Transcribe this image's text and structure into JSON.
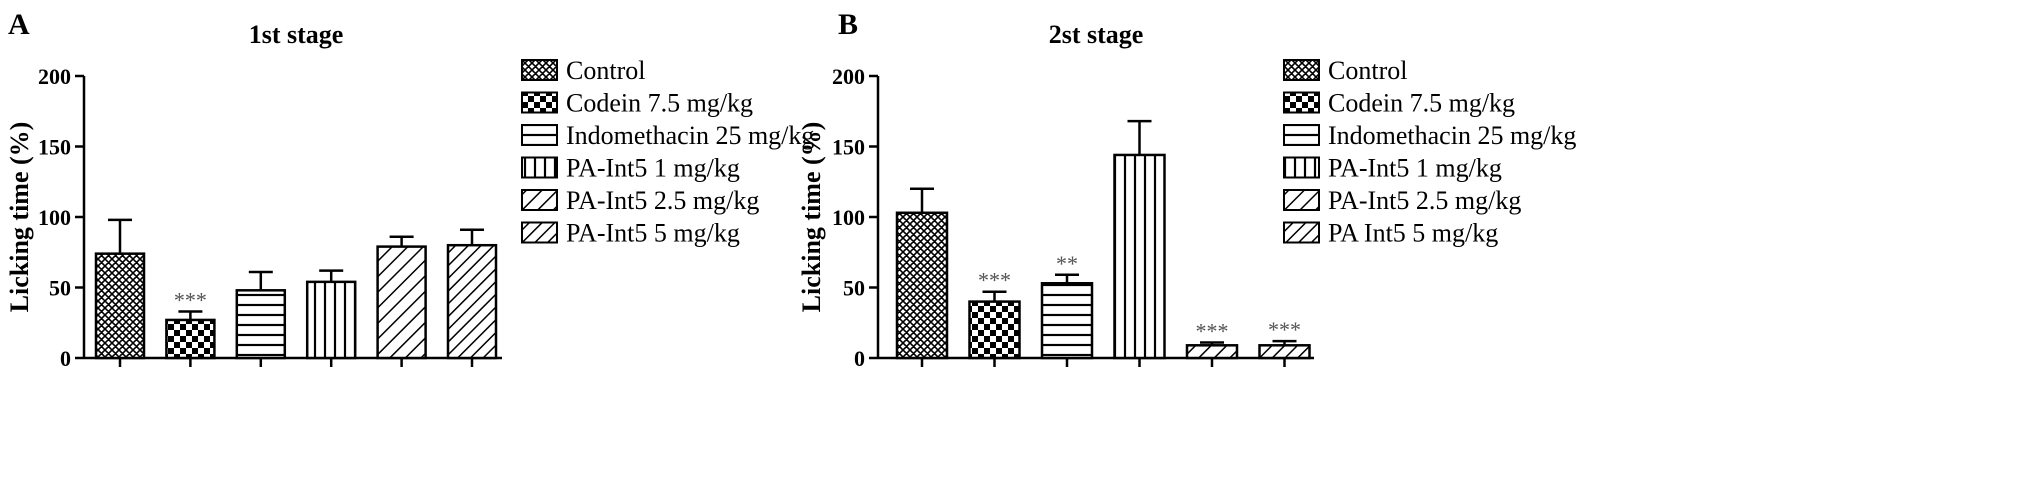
{
  "panels": [
    {
      "letter": "A",
      "chart_data": {
        "type": "bar",
        "title": "1st stage",
        "xlabel": "",
        "ylabel": "Licking time (%)",
        "ylim": [
          0,
          200
        ],
        "yticks": [
          "0",
          "50",
          "100",
          "150",
          "200"
        ],
        "yticks_values": [
          0,
          50,
          100,
          150,
          200
        ],
        "categories": [
          "Control",
          "Codein 7.5 mg/kg",
          "Indomethacin 25 mg/kg",
          "PA-Int5 1 mg/kg",
          "PA-Int5 2.5 mg/kg",
          "PA-Int5 5 mg/kg"
        ],
        "values": [
          74,
          27,
          48,
          54,
          79,
          80
        ],
        "errors": [
          24,
          6,
          13,
          8,
          7,
          11
        ],
        "significance": [
          "",
          "***",
          "",
          "",
          "",
          ""
        ],
        "patterns": [
          "crosshatch",
          "checker",
          "hlines",
          "vlines",
          "diag-right",
          "diag-right-dense"
        ],
        "grid": false,
        "legend": {
          "placement": "right",
          "labels": [
            "Control",
            "Codein 7.5 mg/kg",
            "Indomethacin 25 mg/kg",
            "PA-Int5 1 mg/kg",
            "PA-Int5 2.5 mg/kg",
            "PA-Int5 5 mg/kg"
          ]
        }
      }
    },
    {
      "letter": "B",
      "chart_data": {
        "type": "bar",
        "title": "2st stage",
        "xlabel": "",
        "ylabel": "Licking time (%)",
        "ylim": [
          0,
          200
        ],
        "yticks": [
          "0",
          "50",
          "100",
          "150",
          "200"
        ],
        "yticks_values": [
          0,
          50,
          100,
          150,
          200
        ],
        "categories": [
          "Control",
          "Codein 7.5 mg/kg",
          "Indomethacin 25 mg/kg",
          "PA-Int5 1 mg/kg",
          "PA-Int5 2.5 mg/kg",
          "PA Int5 5 mg/kg"
        ],
        "values": [
          103,
          40,
          53,
          144,
          9,
          9
        ],
        "errors": [
          17,
          7,
          6,
          24,
          2,
          3
        ],
        "significance": [
          "",
          "***",
          "**",
          "",
          "***",
          "***"
        ],
        "patterns": [
          "crosshatch",
          "checker",
          "hlines",
          "vlines",
          "diag-right",
          "diag-right-dense"
        ],
        "grid": false,
        "legend": {
          "placement": "right",
          "labels": [
            "Control",
            "Codein 7.5 mg/kg",
            "Indomethacin 25 mg/kg",
            "PA-Int5 1 mg/kg",
            "PA-Int5 2.5 mg/kg",
            "PA Int5 5 mg/kg"
          ]
        }
      }
    }
  ],
  "colors": {
    "bar_stroke": "#000000",
    "bar_fill": "#ffffff",
    "significance": "#555555"
  }
}
